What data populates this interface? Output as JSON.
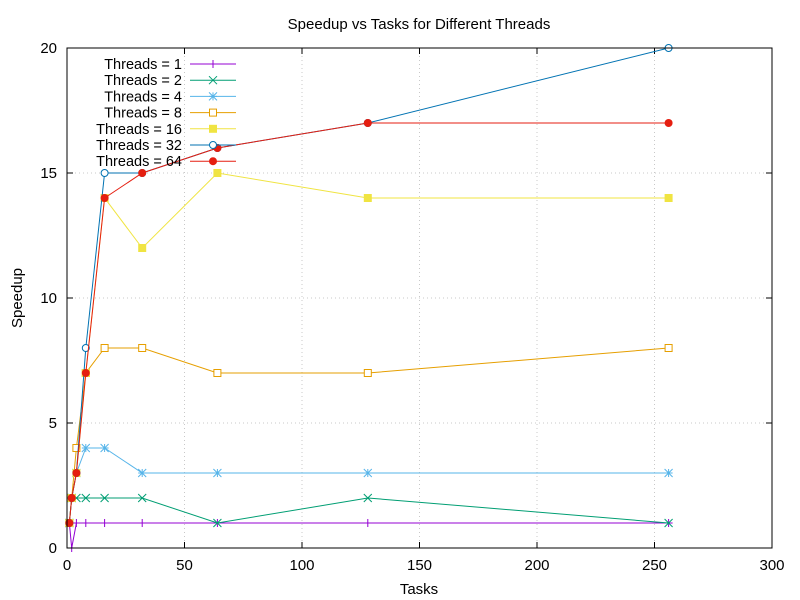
{
  "chart_data": {
    "type": "line",
    "title": "Speedup vs Tasks for Different Threads",
    "xlabel": "Tasks",
    "ylabel": "Speedup",
    "xlim": [
      0,
      300
    ],
    "ylim": [
      0,
      20
    ],
    "xticks": [
      0,
      50,
      100,
      150,
      200,
      250,
      300
    ],
    "yticks": [
      0,
      5,
      10,
      15,
      20
    ],
    "grid": true,
    "legend_position": "top-left",
    "series": [
      {
        "name": "Threads = 1",
        "color": "#9400d3",
        "marker": "plus",
        "x": [
          1,
          2,
          4,
          8,
          16,
          32,
          64,
          128,
          256
        ],
        "y": [
          1,
          0,
          1,
          1,
          1,
          1,
          1,
          1,
          1
        ]
      },
      {
        "name": "Threads = 2",
        "color": "#009e73",
        "marker": "cross",
        "x": [
          1,
          2,
          4,
          8,
          16,
          32,
          64,
          128,
          256
        ],
        "y": [
          1,
          2,
          2,
          2,
          2,
          2,
          1,
          2,
          1
        ]
      },
      {
        "name": "Threads = 4",
        "color": "#56b4e9",
        "marker": "star",
        "x": [
          1,
          2,
          4,
          8,
          16,
          32,
          64,
          128,
          256
        ],
        "y": [
          1,
          2,
          3,
          4,
          4,
          3,
          3,
          3,
          3
        ]
      },
      {
        "name": "Threads = 8",
        "color": "#e69f00",
        "marker": "open-square",
        "x": [
          1,
          2,
          4,
          8,
          16,
          32,
          64,
          128,
          256
        ],
        "y": [
          1,
          2,
          4,
          7,
          8,
          8,
          7,
          7,
          8
        ]
      },
      {
        "name": "Threads = 16",
        "color": "#f0e442",
        "marker": "filled-square",
        "x": [
          1,
          2,
          4,
          8,
          16,
          32,
          64,
          128,
          256
        ],
        "y": [
          1,
          2,
          3,
          7,
          14,
          12,
          15,
          14,
          14
        ]
      },
      {
        "name": "Threads = 32",
        "color": "#0072b2",
        "marker": "open-circle",
        "x": [
          1,
          2,
          4,
          8,
          16,
          32,
          64,
          128,
          256
        ],
        "y": [
          1,
          2,
          3,
          8,
          15,
          15,
          16,
          17,
          20
        ]
      },
      {
        "name": "Threads = 64",
        "color": "#e51e10",
        "marker": "filled-circle",
        "x": [
          1,
          2,
          4,
          8,
          16,
          32,
          64,
          128,
          256
        ],
        "y": [
          1,
          2,
          3,
          7,
          14,
          15,
          16,
          17,
          17
        ]
      }
    ]
  }
}
